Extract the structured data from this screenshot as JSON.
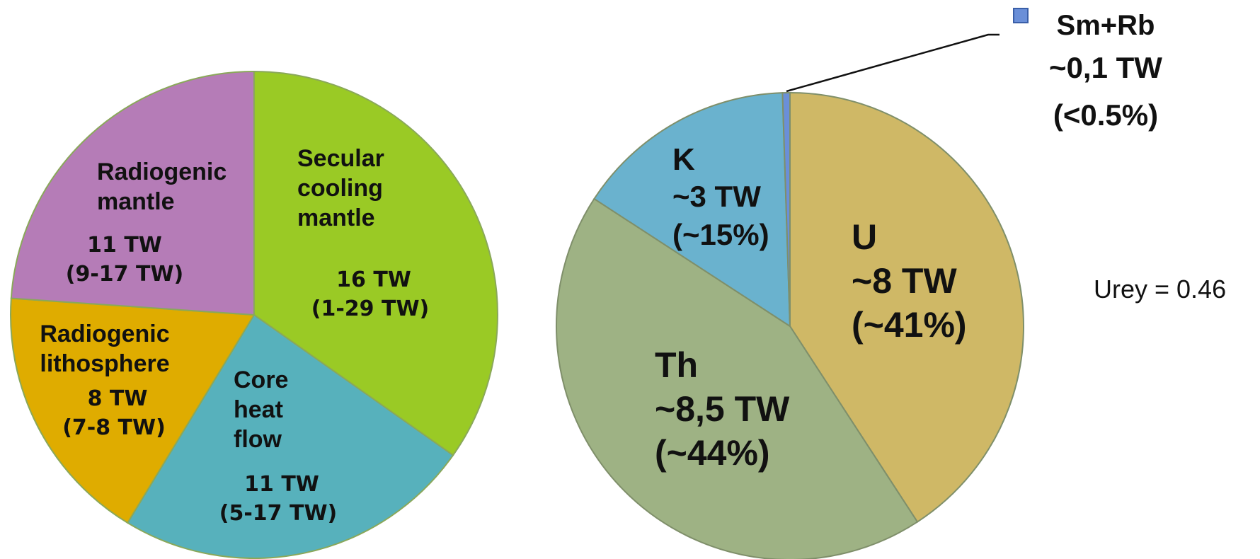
{
  "chart_data": [
    {
      "type": "pie",
      "slices": [
        {
          "name": "Secular cooling mantle",
          "lines": [
            "Secular",
            "cooling",
            "mantle"
          ],
          "value": 16,
          "value_label": "16 TW",
          "range_label": "(1-29 TW)",
          "color": "#9ACA25"
        },
        {
          "name": "Core heat flow",
          "lines": [
            "Core",
            "heat",
            "flow"
          ],
          "value": 11,
          "value_label": "11 TW",
          "range_label": "(5-17 TW)",
          "color": "#57B1BC"
        },
        {
          "name": "Radiogenic lithosphere",
          "lines": [
            "Radiogenic",
            "lithosphere"
          ],
          "value": 8,
          "value_label": "8 TW",
          "range_label": "(7-8 TW)",
          "color": "#DFAC00"
        },
        {
          "name": "Radiogenic mantle",
          "lines": [
            "Radiogenic",
            "mantle"
          ],
          "value": 11,
          "value_label": "11 TW",
          "range_label": "(9-17 TW)",
          "color": "#B57CB7"
        }
      ]
    },
    {
      "type": "pie",
      "slices": [
        {
          "name": "U",
          "value": 8,
          "value_label": "~8 TW",
          "percent_label": "(~41%)",
          "color": "#CFB866"
        },
        {
          "name": "Th",
          "value": 8.5,
          "value_label": "~8,5 TW",
          "percent_label": "(~44%)",
          "color": "#9EB284"
        },
        {
          "name": "K",
          "value": 3,
          "value_label": "~3 TW",
          "percent_label": "(~15%)",
          "color": "#6AB2CE"
        },
        {
          "name": "Sm+Rb",
          "value": 0.1,
          "value_label": "~0,1 TW",
          "percent_label": "(<0.5%)",
          "color": "#6A8FD8",
          "legend_marker": true
        }
      ]
    }
  ],
  "annotation": "Urey = 0.46"
}
